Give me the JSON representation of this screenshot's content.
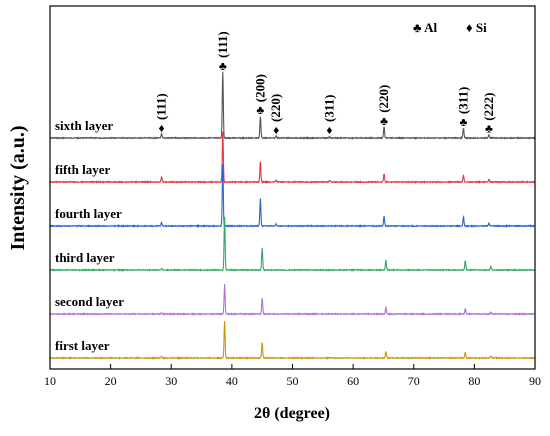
{
  "chart_data": {
    "type": "line",
    "title": "",
    "xlabel": "2θ (degree)",
    "ylabel": "Intensity (a.u.)",
    "xlim": [
      10,
      90
    ],
    "x_ticks": [
      10,
      20,
      30,
      40,
      50,
      60,
      70,
      80,
      90
    ],
    "y_ticks_shown": false,
    "grid": false,
    "legend": {
      "placement": "top-right",
      "entries": [
        {
          "symbol": "♣",
          "label": "Al"
        },
        {
          "symbol": "♦",
          "label": "Si"
        }
      ]
    },
    "series": [
      {
        "name": "sixth layer",
        "color": "#555555",
        "offset": 5,
        "peaks": [
          {
            "x": 28.4,
            "h": 0.06
          },
          {
            "x": 38.5,
            "h": 1.0
          },
          {
            "x": 44.7,
            "h": 0.33
          },
          {
            "x": 47.3,
            "h": 0.03
          },
          {
            "x": 56.1,
            "h": 0.02
          },
          {
            "x": 65.1,
            "h": 0.17
          },
          {
            "x": 78.2,
            "h": 0.15
          },
          {
            "x": 82.4,
            "h": 0.05
          }
        ]
      },
      {
        "name": "fifth layer",
        "color": "#e8333c",
        "offset": 4,
        "peaks": [
          {
            "x": 28.4,
            "h": 0.07
          },
          {
            "x": 38.5,
            "h": 0.76
          },
          {
            "x": 44.7,
            "h": 0.31
          },
          {
            "x": 47.3,
            "h": 0.03
          },
          {
            "x": 56.1,
            "h": 0.02
          },
          {
            "x": 65.1,
            "h": 0.13
          },
          {
            "x": 78.2,
            "h": 0.1
          },
          {
            "x": 82.4,
            "h": 0.04
          }
        ]
      },
      {
        "name": "fourth layer",
        "color": "#2a63d4",
        "offset": 3,
        "peaks": [
          {
            "x": 28.4,
            "h": 0.05
          },
          {
            "x": 38.5,
            "h": 0.93
          },
          {
            "x": 44.7,
            "h": 0.42
          },
          {
            "x": 47.3,
            "h": 0.03
          },
          {
            "x": 65.1,
            "h": 0.15
          },
          {
            "x": 78.2,
            "h": 0.14
          },
          {
            "x": 82.4,
            "h": 0.04
          }
        ]
      },
      {
        "name": "third layer",
        "color": "#2fa866",
        "offset": 2,
        "peaks": [
          {
            "x": 28.4,
            "h": 0.02
          },
          {
            "x": 38.8,
            "h": 0.8
          },
          {
            "x": 45.0,
            "h": 0.33
          },
          {
            "x": 65.4,
            "h": 0.15
          },
          {
            "x": 78.5,
            "h": 0.14
          },
          {
            "x": 82.7,
            "h": 0.05
          }
        ]
      },
      {
        "name": "second layer",
        "color": "#b070d8",
        "offset": 1,
        "peaks": [
          {
            "x": 28.4,
            "h": 0.02
          },
          {
            "x": 38.8,
            "h": 0.45
          },
          {
            "x": 45.0,
            "h": 0.24
          },
          {
            "x": 65.4,
            "h": 0.1
          },
          {
            "x": 78.5,
            "h": 0.08
          },
          {
            "x": 82.7,
            "h": 0.03
          }
        ]
      },
      {
        "name": "first layer",
        "color": "#c9960f",
        "offset": 0,
        "peaks": [
          {
            "x": 28.4,
            "h": 0.02
          },
          {
            "x": 38.8,
            "h": 0.56
          },
          {
            "x": 45.0,
            "h": 0.24
          },
          {
            "x": 65.4,
            "h": 0.1
          },
          {
            "x": 78.5,
            "h": 0.09
          },
          {
            "x": 82.7,
            "h": 0.03
          }
        ]
      }
    ],
    "peak_annotations": [
      {
        "x": 28.4,
        "hkl": "(111)",
        "phase": "Si",
        "symbol": "♦"
      },
      {
        "x": 38.5,
        "hkl": "(111)",
        "phase": "Al",
        "symbol": "♣"
      },
      {
        "x": 44.7,
        "hkl": "(200)",
        "phase": "Al",
        "symbol": "♣"
      },
      {
        "x": 47.3,
        "hkl": "(220)",
        "phase": "Si",
        "symbol": "♦"
      },
      {
        "x": 56.1,
        "hkl": "(311)",
        "phase": "Si",
        "symbol": "♦"
      },
      {
        "x": 65.1,
        "hkl": "(220)",
        "phase": "Al",
        "symbol": "♣"
      },
      {
        "x": 78.2,
        "hkl": "(311)",
        "phase": "Al",
        "symbol": "♣"
      },
      {
        "x": 82.4,
        "hkl": "(222)",
        "phase": "Al",
        "symbol": "♣"
      }
    ]
  }
}
